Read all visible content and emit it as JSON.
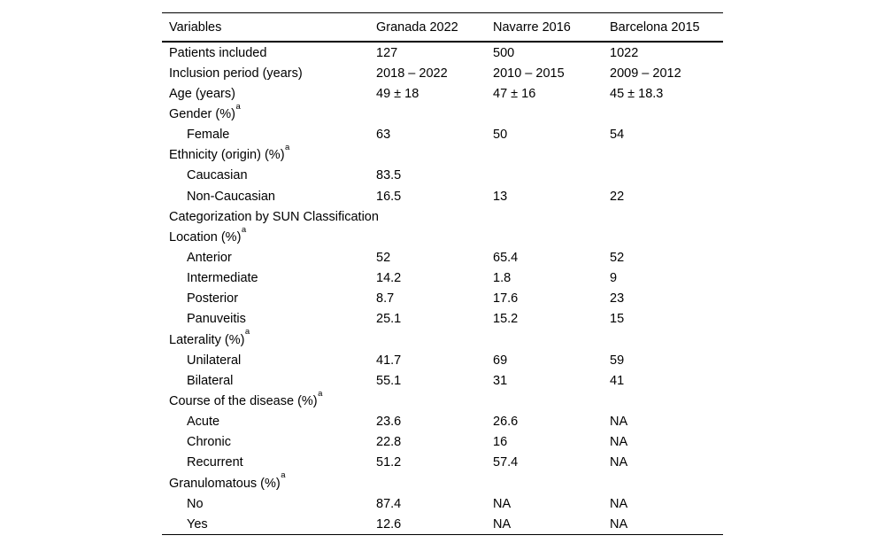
{
  "page": {
    "background": "#ffffff",
    "text_color": "#000000",
    "rule_color": "#000000"
  },
  "table": {
    "columns": [
      "Variables",
      "Granada 2022",
      "Navarre 2016",
      "Barcelona 2015"
    ],
    "footnote_marker": "a",
    "rows": [
      {
        "label": "Patients included",
        "sup": "",
        "indent": 0,
        "values": [
          "127",
          "500",
          "1022"
        ]
      },
      {
        "label": "Inclusion period (years)",
        "sup": "",
        "indent": 0,
        "values": [
          "2018 – 2022",
          "2010 – 2015",
          "2009 – 2012"
        ]
      },
      {
        "label": "Age (years)",
        "sup": "",
        "indent": 0,
        "values": [
          "49 ± 18",
          "47 ± 16",
          "45 ± 18.3"
        ]
      },
      {
        "label": "Gender (%)",
        "sup": "a",
        "indent": 0,
        "values": [
          "",
          "",
          ""
        ]
      },
      {
        "label": "Female",
        "sup": "",
        "indent": 1,
        "values": [
          "63",
          "50",
          "54"
        ]
      },
      {
        "label": "Ethnicity (origin) (%)",
        "sup": "a",
        "indent": 0,
        "values": [
          "",
          "",
          ""
        ]
      },
      {
        "label": "Caucasian",
        "sup": "",
        "indent": 1,
        "values": [
          "83.5",
          "",
          ""
        ]
      },
      {
        "label": "Non-Caucasian",
        "sup": "",
        "indent": 1,
        "values": [
          "16.5",
          "13",
          "22"
        ]
      },
      {
        "label": "Categorization by SUN Classification",
        "sup": "",
        "indent": 0,
        "values": [
          "",
          "",
          ""
        ]
      },
      {
        "label": "Location (%)",
        "sup": "a",
        "indent": 0,
        "values": [
          "",
          "",
          ""
        ]
      },
      {
        "label": "Anterior",
        "sup": "",
        "indent": 1,
        "values": [
          "52",
          "65.4",
          "52"
        ]
      },
      {
        "label": "Intermediate",
        "sup": "",
        "indent": 1,
        "values": [
          "14.2",
          "1.8",
          "9"
        ]
      },
      {
        "label": "Posterior",
        "sup": "",
        "indent": 1,
        "values": [
          "8.7",
          "17.6",
          "23"
        ]
      },
      {
        "label": "Panuveitis",
        "sup": "",
        "indent": 1,
        "values": [
          "25.1",
          "15.2",
          "15"
        ]
      },
      {
        "label": "Laterality (%)",
        "sup": "a",
        "indent": 0,
        "values": [
          "",
          "",
          ""
        ]
      },
      {
        "label": "Unilateral",
        "sup": "",
        "indent": 1,
        "values": [
          "41.7",
          "69",
          "59"
        ]
      },
      {
        "label": "Bilateral",
        "sup": "",
        "indent": 1,
        "values": [
          "55.1",
          "31",
          "41"
        ]
      },
      {
        "label": "Course of the disease (%)",
        "sup": "a",
        "indent": 0,
        "values": [
          "",
          "",
          ""
        ]
      },
      {
        "label": "Acute",
        "sup": "",
        "indent": 1,
        "values": [
          "23.6",
          "26.6",
          "NA"
        ]
      },
      {
        "label": "Chronic",
        "sup": "",
        "indent": 1,
        "values": [
          "22.8",
          "16",
          "NA"
        ]
      },
      {
        "label": "Recurrent",
        "sup": "",
        "indent": 1,
        "values": [
          "51.2",
          "57.4",
          "NA"
        ]
      },
      {
        "label": "Granulomatous (%)",
        "sup": "a",
        "indent": 0,
        "values": [
          "",
          "",
          ""
        ]
      },
      {
        "label": "No",
        "sup": "",
        "indent": 1,
        "values": [
          "87.4",
          "NA",
          "NA"
        ]
      },
      {
        "label": "Yes",
        "sup": "",
        "indent": 1,
        "values": [
          "12.6",
          "NA",
          "NA"
        ]
      }
    ]
  }
}
